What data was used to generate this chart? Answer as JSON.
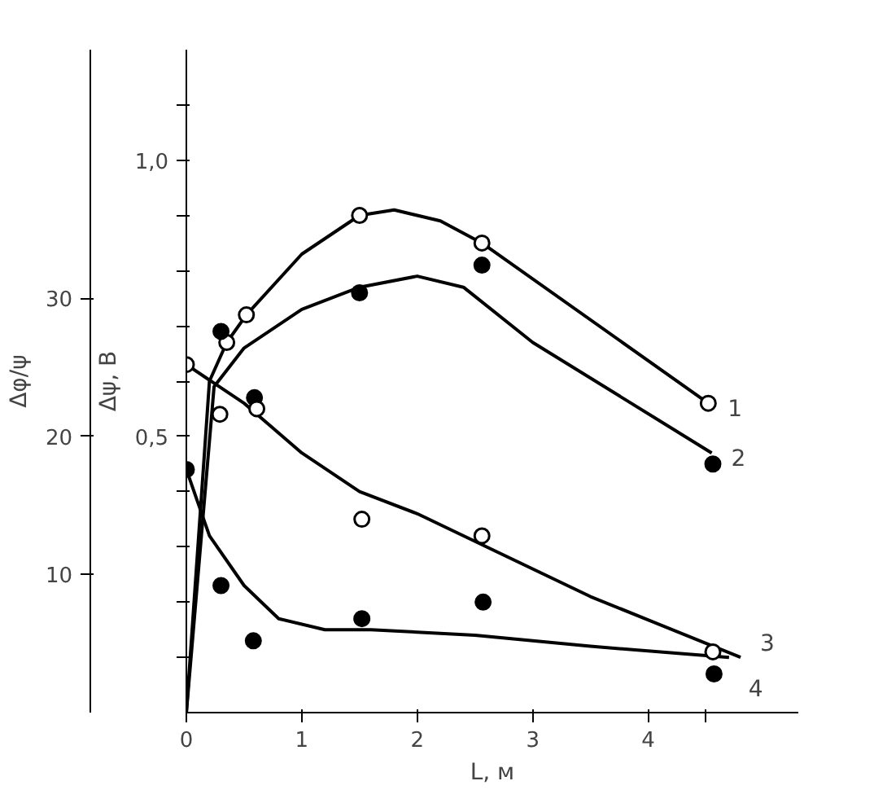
{
  "chart_data": {
    "type": "line",
    "xlabel": "L, м",
    "ylabel": "Δψ, В",
    "y2label": "Δφ/ψ",
    "xlim": [
      0,
      5.3
    ],
    "ylim": [
      0,
      1.2
    ],
    "y2lim": [
      0,
      48
    ],
    "xticks": [
      {
        "value": 0,
        "label": "0"
      },
      1,
      2,
      3,
      4,
      {
        "value": 4.5,
        "label": null
      }
    ],
    "yticks": [
      {
        "value": 0.1,
        "label": null
      },
      {
        "value": 0.2,
        "label": null
      },
      {
        "value": 0.3,
        "label": null
      },
      {
        "value": 0.4,
        "label": null
      },
      {
        "value": 0.5,
        "label": "0,5"
      },
      {
        "value": 0.6,
        "label": null
      },
      {
        "value": 0.7,
        "label": null
      },
      {
        "value": 0.8,
        "label": null
      },
      {
        "value": 0.9,
        "label": null
      },
      {
        "value": 1.0,
        "label": "1,0"
      },
      {
        "value": 1.1,
        "label": null
      }
    ],
    "y2ticks": [
      10,
      20,
      30
    ],
    "grid": false,
    "line_style": "solid",
    "series": [
      {
        "name": "1",
        "marker": "none",
        "color": "#000000",
        "x": [
          0,
          0.2,
          0.35,
          0.52,
          1,
          1.5,
          1.8,
          2.2,
          2.56,
          4.52
        ],
        "values": [
          0,
          0.6,
          0.67,
          0.72,
          0.83,
          0.9,
          0.91,
          0.89,
          0.85,
          0.56
        ]
      },
      {
        "name": "2",
        "marker": "none",
        "color": "#000000",
        "x": [
          0,
          0.24,
          0.5,
          1,
          1.5,
          2,
          2.4,
          3,
          4.55
        ],
        "values": [
          0,
          0.59,
          0.66,
          0.73,
          0.77,
          0.79,
          0.77,
          0.67,
          0.47
        ]
      },
      {
        "name": "3",
        "marker": "none",
        "color": "#000000",
        "x": [
          0,
          0.5,
          1,
          1.5,
          2,
          2.6,
          3.5,
          4.8
        ],
        "values": [
          0.63,
          0.56,
          0.47,
          0.4,
          0.36,
          0.3,
          0.21,
          0.1
        ]
      },
      {
        "name": "4",
        "marker": "none",
        "color": "#000000",
        "x": [
          0,
          0.2,
          0.5,
          0.8,
          1.2,
          1.6,
          2.5,
          3.5,
          4.7
        ],
        "values": [
          0.44,
          0.32,
          0.23,
          0.17,
          0.15,
          0.15,
          0.14,
          0.12,
          0.1
        ]
      },
      {
        "type": "scatter",
        "marker": "circle",
        "color": "#ffffff",
        "x": [
          0.35,
          0.52,
          1.5,
          2.56,
          4.52
        ],
        "values": [
          0.67,
          0.72,
          0.9,
          0.85,
          0.56
        ]
      },
      {
        "type": "scatter",
        "marker": "circle",
        "color": "#000000",
        "x": [
          0.3,
          0.59,
          1.5,
          2.56,
          4.56
        ],
        "values": [
          0.69,
          0.57,
          0.76,
          0.81,
          0.45
        ]
      },
      {
        "type": "scatter",
        "marker": "circle",
        "color": "#ffffff",
        "x": [
          0,
          0.29,
          0.61,
          1.52,
          2.56,
          4.56
        ],
        "values": [
          0.63,
          0.54,
          0.55,
          0.35,
          0.32,
          0.11
        ]
      },
      {
        "type": "scatter",
        "marker": "circle",
        "color": "#000000",
        "x": [
          0,
          0.3,
          0.58,
          1.52,
          2.57,
          4.57
        ],
        "values": [
          0.44,
          0.23,
          0.13,
          0.17,
          0.2,
          0.07
        ]
      }
    ]
  }
}
